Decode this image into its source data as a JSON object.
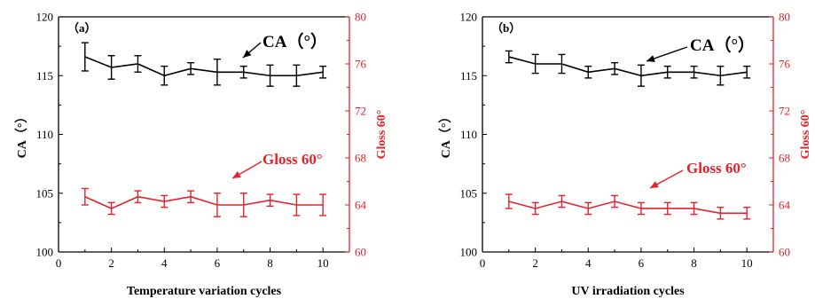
{
  "chart_data": [
    {
      "type": "line",
      "panel_label": "（a）",
      "xlabel": "Temperature variation cycles",
      "ylabel_left": "CA（°）",
      "ylabel_right": "Gloss 60°",
      "xlim": [
        0,
        11
      ],
      "xticks": [
        0,
        2,
        4,
        6,
        8,
        10
      ],
      "ylim_left": [
        100,
        120
      ],
      "yticks_left": [
        100,
        105,
        110,
        115,
        120
      ],
      "ylim_right": [
        60,
        80
      ],
      "yticks_right": [
        60,
        64,
        68,
        72,
        76,
        80
      ],
      "grid": false,
      "left_axis_color": "#000000",
      "right_axis_color": "#e8202a",
      "annotations": [
        {
          "text": "CA（°）",
          "series": "ca"
        },
        {
          "text": "Gloss 60°",
          "series": "gloss"
        }
      ],
      "series": [
        {
          "key": "ca",
          "axis": "left",
          "color": "#000000",
          "x": [
            1,
            2,
            3,
            4,
            5,
            6,
            7,
            8,
            9,
            10
          ],
          "values": [
            116.6,
            115.7,
            116.0,
            115.0,
            115.6,
            115.3,
            115.3,
            115.0,
            115.0,
            115.3
          ],
          "errors": [
            1.2,
            1.0,
            0.7,
            0.8,
            0.5,
            1.1,
            0.5,
            0.9,
            0.9,
            0.5
          ]
        },
        {
          "key": "gloss",
          "axis": "right",
          "color": "#e8202a",
          "x": [
            1,
            2,
            3,
            4,
            5,
            6,
            7,
            8,
            9,
            10
          ],
          "values": [
            64.7,
            63.7,
            64.7,
            64.3,
            64.7,
            64.0,
            64.0,
            64.4,
            64.0,
            64.0
          ],
          "errors": [
            0.7,
            0.5,
            0.5,
            0.5,
            0.5,
            1.0,
            1.0,
            0.5,
            0.9,
            0.9
          ]
        }
      ]
    },
    {
      "type": "line",
      "panel_label": "（b）",
      "xlabel": "UV irradiation cycles",
      "ylabel_left": "CA（°）",
      "ylabel_right": "Gloss 60°",
      "xlim": [
        0,
        11
      ],
      "xticks": [
        0,
        2,
        4,
        6,
        8,
        10
      ],
      "ylim_left": [
        100,
        120
      ],
      "yticks_left": [
        100,
        105,
        110,
        115,
        120
      ],
      "ylim_right": [
        60,
        80
      ],
      "yticks_right": [
        60,
        64,
        68,
        72,
        76,
        80
      ],
      "grid": false,
      "left_axis_color": "#000000",
      "right_axis_color": "#e8202a",
      "annotations": [
        {
          "text": "CA（°）",
          "series": "ca"
        },
        {
          "text": "Gloss 60°",
          "series": "gloss"
        }
      ],
      "series": [
        {
          "key": "ca",
          "axis": "left",
          "color": "#000000",
          "x": [
            1,
            2,
            3,
            4,
            5,
            6,
            7,
            8,
            9,
            10
          ],
          "values": [
            116.6,
            116.0,
            116.0,
            115.3,
            115.6,
            115.0,
            115.3,
            115.3,
            115.0,
            115.3
          ],
          "errors": [
            0.5,
            0.8,
            0.8,
            0.5,
            0.5,
            0.9,
            0.5,
            0.5,
            0.8,
            0.5
          ]
        },
        {
          "key": "gloss",
          "axis": "right",
          "color": "#e8202a",
          "x": [
            1,
            2,
            3,
            4,
            5,
            6,
            7,
            8,
            9,
            10
          ],
          "values": [
            64.3,
            63.7,
            64.3,
            63.7,
            64.3,
            63.7,
            63.7,
            63.7,
            63.3,
            63.3
          ],
          "errors": [
            0.6,
            0.5,
            0.5,
            0.5,
            0.5,
            0.5,
            0.5,
            0.5,
            0.5,
            0.5
          ]
        }
      ]
    }
  ]
}
